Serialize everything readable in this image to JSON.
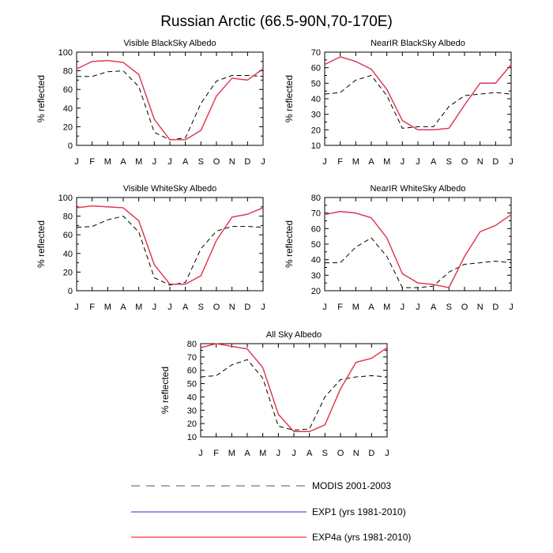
{
  "title": "Russian Arctic (66.5-90N,70-170E)",
  "month_labels": [
    "J",
    "F",
    "M",
    "A",
    "M",
    "J",
    "J",
    "A",
    "S",
    "O",
    "N",
    "D",
    "J"
  ],
  "legend": [
    {
      "label": "MODIS 2001-2003",
      "color": "#000000",
      "dash": true
    },
    {
      "label": "EXP1 (yrs 1981-2010)",
      "color": "#2b2bd6",
      "dash": false
    },
    {
      "label": "EXP4a (yrs 1981-2010)",
      "color": "#ff0000",
      "dash": false
    }
  ],
  "chart_data": [
    {
      "type": "line",
      "title": "Visible BlackSky Albedo",
      "ylabel": "% reflected",
      "ylim": [
        0,
        100
      ],
      "yticks": [
        0,
        20,
        40,
        60,
        80,
        100
      ],
      "categories": [
        "J",
        "F",
        "M",
        "A",
        "M",
        "J",
        "J",
        "A",
        "S",
        "O",
        "N",
        "D",
        "J"
      ],
      "series": [
        {
          "name": "MODIS 2001-2003",
          "values": [
            74,
            74,
            79,
            80,
            63,
            14,
            6,
            8,
            45,
            69,
            75,
            75,
            74
          ]
        },
        {
          "name": "EXP1 (yrs 1981-2010)",
          "values": [
            82,
            90,
            91,
            89,
            76,
            28,
            6,
            6,
            16,
            53,
            72,
            70,
            82
          ]
        },
        {
          "name": "EXP4a (yrs 1981-2010)",
          "values": [
            82,
            90,
            91,
            89,
            76,
            28,
            6,
            6,
            16,
            53,
            72,
            70,
            82
          ]
        }
      ]
    },
    {
      "type": "line",
      "title": "NearIR BlackSky Albedo",
      "ylabel": "% reflected",
      "ylim": [
        10,
        70
      ],
      "yticks": [
        10,
        20,
        30,
        40,
        50,
        60,
        70
      ],
      "categories": [
        "J",
        "F",
        "M",
        "A",
        "M",
        "J",
        "J",
        "A",
        "S",
        "O",
        "N",
        "D",
        "J"
      ],
      "series": [
        {
          "name": "MODIS 2001-2003",
          "values": [
            43,
            44,
            52,
            55,
            42,
            21,
            22,
            22,
            35,
            42,
            43,
            44,
            43
          ]
        },
        {
          "name": "EXP1 (yrs 1981-2010)",
          "values": [
            62,
            67,
            64,
            59,
            46,
            26,
            20,
            20,
            21,
            36,
            50,
            50,
            62
          ]
        },
        {
          "name": "EXP4a (yrs 1981-2010)",
          "values": [
            62,
            67,
            64,
            59,
            46,
            26,
            20,
            20,
            21,
            36,
            50,
            50,
            62
          ]
        }
      ]
    },
    {
      "type": "line",
      "title": "Visible WhiteSky Albedo",
      "ylabel": "% reflected",
      "ylim": [
        0,
        100
      ],
      "yticks": [
        0,
        20,
        40,
        60,
        80,
        100
      ],
      "categories": [
        "J",
        "F",
        "M",
        "A",
        "M",
        "J",
        "J",
        "A",
        "S",
        "O",
        "N",
        "D",
        "J"
      ],
      "series": [
        {
          "name": "MODIS 2001-2003",
          "values": [
            68,
            69,
            76,
            80,
            63,
            14,
            6,
            9,
            45,
            64,
            69,
            69,
            68
          ]
        },
        {
          "name": "EXP1 (yrs 1981-2010)",
          "values": [
            89,
            91,
            90,
            89,
            75,
            28,
            7,
            7,
            16,
            54,
            79,
            82,
            89
          ]
        },
        {
          "name": "EXP4a (yrs 1981-2010)",
          "values": [
            89,
            91,
            90,
            89,
            75,
            28,
            7,
            7,
            16,
            54,
            79,
            82,
            89
          ]
        }
      ]
    },
    {
      "type": "line",
      "title": "NearIR WhiteSky Albedo",
      "ylabel": "% reflected",
      "ylim": [
        20,
        80
      ],
      "yticks": [
        20,
        30,
        40,
        50,
        60,
        70,
        80
      ],
      "categories": [
        "J",
        "F",
        "M",
        "A",
        "M",
        "J",
        "J",
        "A",
        "S",
        "O",
        "N",
        "D",
        "J"
      ],
      "series": [
        {
          "name": "MODIS 2001-2003",
          "values": [
            38,
            38,
            48,
            54,
            42,
            22,
            22,
            23,
            32,
            37,
            38,
            39,
            38
          ]
        },
        {
          "name": "EXP1 (yrs 1981-2010)",
          "values": [
            69,
            71,
            70,
            67,
            54,
            31,
            25,
            24,
            22,
            42,
            58,
            62,
            69
          ]
        },
        {
          "name": "EXP4a (yrs 1981-2010)",
          "values": [
            69,
            71,
            70,
            67,
            54,
            31,
            25,
            24,
            22,
            42,
            58,
            62,
            69
          ]
        }
      ]
    },
    {
      "type": "line",
      "title": "All Sky Albedo",
      "ylabel": "% reflected",
      "ylim": [
        10,
        80
      ],
      "yticks": [
        10,
        20,
        30,
        40,
        50,
        60,
        70,
        80
      ],
      "categories": [
        "J",
        "F",
        "M",
        "A",
        "M",
        "J",
        "J",
        "A",
        "S",
        "O",
        "N",
        "D",
        "J"
      ],
      "series": [
        {
          "name": "MODIS 2001-2003",
          "values": [
            55,
            56,
            64,
            68,
            54,
            18,
            15,
            16,
            40,
            53,
            55,
            56,
            55
          ]
        },
        {
          "name": "EXP1 (yrs 1981-2010)",
          "values": [
            77,
            80,
            78,
            76,
            62,
            27,
            14,
            14,
            19,
            46,
            66,
            69,
            77
          ]
        },
        {
          "name": "EXP4a (yrs 1981-2010)",
          "values": [
            77,
            80,
            78,
            76,
            62,
            27,
            14,
            14,
            19,
            46,
            66,
            69,
            77
          ]
        }
      ]
    }
  ]
}
